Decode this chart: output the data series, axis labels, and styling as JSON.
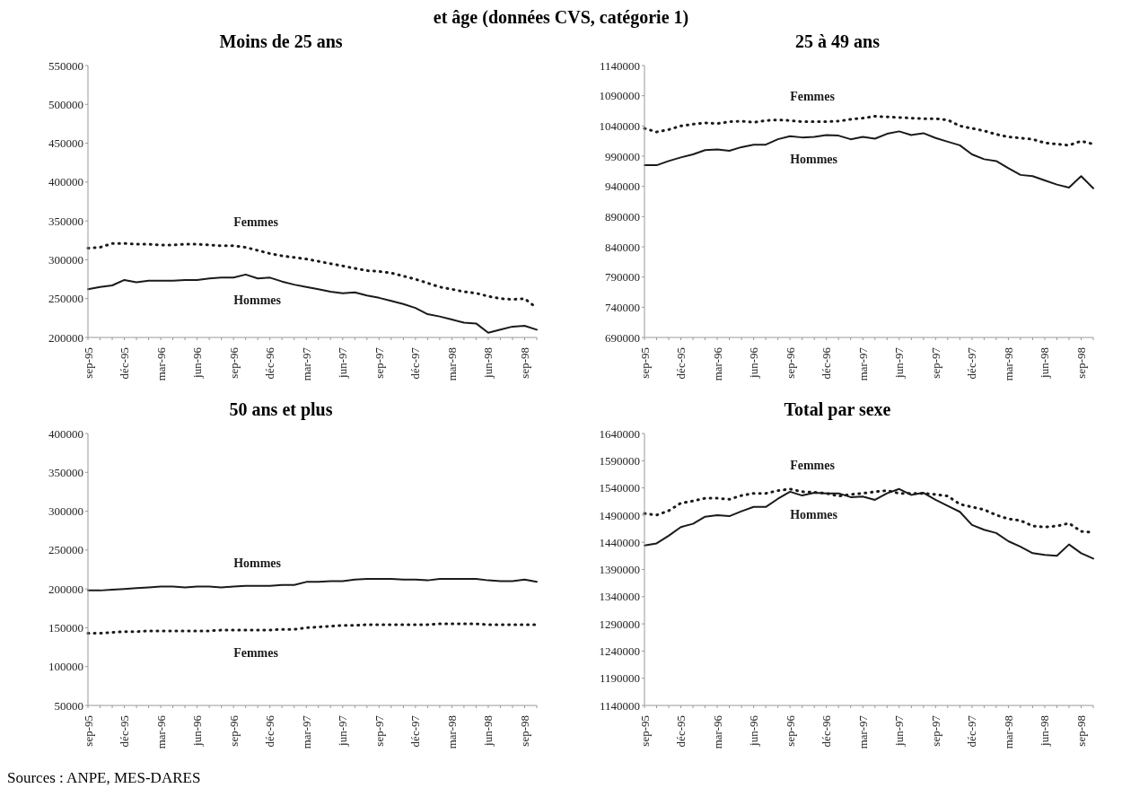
{
  "chart_data": [
    {
      "type": "line",
      "title": "Moins de 25 ans",
      "annotations": [
        "et âge (données CVS, catégorie 1)"
      ],
      "categories": [
        "sep-95",
        null,
        null,
        "déc-95",
        null,
        null,
        "mar-96",
        null,
        null,
        "jun-96",
        null,
        null,
        "sep-96",
        null,
        null,
        "déc-96",
        null,
        null,
        "mar-97",
        null,
        null,
        "jun-97",
        null,
        null,
        "sep-97",
        null,
        null,
        "déc-97",
        null,
        null,
        "mar-98",
        null,
        null,
        "jun-98",
        null,
        null,
        "sep-98",
        null
      ],
      "ylim": [
        200000,
        550000
      ],
      "yticks": [
        200000,
        250000,
        300000,
        350000,
        400000,
        450000,
        500000,
        550000
      ],
      "grid": false,
      "legend": false,
      "marker": "none",
      "series": [
        {
          "name": "Femmes",
          "color": "#1a1a1a",
          "line_style": "dotted",
          "values": [
            315000,
            316000,
            321000,
            321000,
            320000,
            320000,
            319000,
            319000,
            320000,
            320000,
            319000,
            318000,
            318000,
            316000,
            312000,
            308000,
            305000,
            303000,
            301000,
            298000,
            295000,
            292000,
            289000,
            286000,
            285000,
            283000,
            279000,
            275000,
            270000,
            265000,
            262000,
            259000,
            257000,
            253000,
            250000,
            249000,
            250000,
            238000
          ]
        },
        {
          "name": "Hommes",
          "color": "#1a1a1a",
          "line_style": "solid",
          "values": [
            262000,
            265000,
            267000,
            274000,
            271000,
            273000,
            273000,
            273000,
            274000,
            274000,
            276000,
            277000,
            277000,
            281000,
            276000,
            277000,
            272000,
            268000,
            265000,
            262000,
            259000,
            257000,
            258000,
            254000,
            251000,
            247000,
            243000,
            238000,
            230000,
            227000,
            223000,
            219000,
            218000,
            206000,
            210000,
            214000,
            215000,
            210000
          ]
        }
      ]
    },
    {
      "type": "line",
      "title": "25 à 49 ans",
      "categories": [
        "sep-95",
        null,
        null,
        "déc-95",
        null,
        null,
        "mar-96",
        null,
        null,
        "jun-96",
        null,
        null,
        "sep-96",
        null,
        null,
        "déc-96",
        null,
        null,
        "mar-97",
        null,
        null,
        "jun-97",
        null,
        null,
        "sep-97",
        null,
        null,
        "déc-97",
        null,
        null,
        "mar-98",
        null,
        null,
        "jun-98",
        null,
        null,
        "sep-98",
        null
      ],
      "ylim": [
        690000,
        1140000
      ],
      "yticks": [
        690000,
        740000,
        790000,
        840000,
        890000,
        940000,
        990000,
        1040000,
        1090000,
        1140000
      ],
      "grid": false,
      "legend": false,
      "marker": "none",
      "series": [
        {
          "name": "Femmes",
          "color": "#1a1a1a",
          "line_style": "dotted",
          "values": [
            1036000,
            1030000,
            1034000,
            1040000,
            1043000,
            1045000,
            1044000,
            1047000,
            1048000,
            1046000,
            1049000,
            1050000,
            1049000,
            1047000,
            1047000,
            1047000,
            1048000,
            1051000,
            1053000,
            1056000,
            1055000,
            1054000,
            1053000,
            1052000,
            1052000,
            1050000,
            1040000,
            1036000,
            1032000,
            1026000,
            1022000,
            1020000,
            1018000,
            1012000,
            1010000,
            1008000,
            1015000,
            1010000
          ]
        },
        {
          "name": "Hommes",
          "color": "#1a1a1a",
          "line_style": "solid",
          "values": [
            975000,
            975000,
            982000,
            988000,
            993000,
            1000000,
            1001000,
            999000,
            1005000,
            1009000,
            1009000,
            1018000,
            1023000,
            1021000,
            1022000,
            1025000,
            1024000,
            1018000,
            1022000,
            1019000,
            1027000,
            1031000,
            1025000,
            1028000,
            1020000,
            1014000,
            1008000,
            993000,
            985000,
            982000,
            970000,
            959000,
            957000,
            950000,
            943000,
            938000,
            957000,
            937000
          ]
        }
      ]
    },
    {
      "type": "line",
      "title": "50 ans et plus",
      "annotations": [
        "Sources : ANPE, MES-DARES"
      ],
      "categories": [
        "sep-95",
        null,
        null,
        "déc-95",
        null,
        null,
        "mar-96",
        null,
        null,
        "jun-96",
        null,
        null,
        "sep-96",
        null,
        null,
        "déc-96",
        null,
        null,
        "mar-97",
        null,
        null,
        "jun-97",
        null,
        null,
        "sep-97",
        null,
        null,
        "déc-97",
        null,
        null,
        "mar-98",
        null,
        null,
        "jun-98",
        null,
        null,
        "sep-98",
        null
      ],
      "ylim": [
        50000,
        400000
      ],
      "yticks": [
        50000,
        100000,
        150000,
        200000,
        250000,
        300000,
        350000,
        400000
      ],
      "grid": false,
      "legend": false,
      "marker": "none",
      "series": [
        {
          "name": "Hommes",
          "color": "#1a1a1a",
          "line_style": "solid",
          "values": [
            198000,
            198000,
            199000,
            200000,
            201000,
            202000,
            203000,
            203000,
            202000,
            203000,
            203000,
            202000,
            203000,
            204000,
            204000,
            204000,
            205000,
            205000,
            209000,
            209000,
            210000,
            210000,
            212000,
            213000,
            213000,
            213000,
            212000,
            212000,
            211000,
            213000,
            213000,
            213000,
            213000,
            211000,
            210000,
            210000,
            212000,
            209000
          ]
        },
        {
          "name": "Femmes",
          "color": "#1a1a1a",
          "line_style": "dotted",
          "values": [
            143000,
            143000,
            144000,
            145000,
            145000,
            146000,
            146000,
            146000,
            146000,
            146000,
            146000,
            147000,
            147000,
            147000,
            147000,
            147000,
            148000,
            148000,
            150000,
            151000,
            152000,
            153000,
            153000,
            154000,
            154000,
            154000,
            154000,
            154000,
            154000,
            155000,
            155000,
            155000,
            155000,
            154000,
            154000,
            154000,
            154000,
            154000
          ]
        }
      ]
    },
    {
      "type": "line",
      "title": "Total par sexe",
      "categories": [
        "sep-95",
        null,
        null,
        "déc-95",
        null,
        null,
        "mar-96",
        null,
        null,
        "jun-96",
        null,
        null,
        "sep-96",
        null,
        null,
        "déc-96",
        null,
        null,
        "mar-97",
        null,
        null,
        "jun-97",
        null,
        null,
        "sep-97",
        null,
        null,
        "déc-97",
        null,
        null,
        "mar-98",
        null,
        null,
        "jun-98",
        null,
        null,
        "sep-98",
        null
      ],
      "ylim": [
        1140000,
        1640000
      ],
      "yticks": [
        1140000,
        1190000,
        1240000,
        1290000,
        1340000,
        1390000,
        1440000,
        1490000,
        1540000,
        1590000,
        1640000
      ],
      "grid": false,
      "legend": false,
      "marker": "none",
      "series": [
        {
          "name": "Femmes",
          "color": "#1a1a1a",
          "line_style": "dotted",
          "values": [
            1493000,
            1490000,
            1498000,
            1512000,
            1516000,
            1521000,
            1521000,
            1519000,
            1526000,
            1530000,
            1530000,
            1535000,
            1538000,
            1533000,
            1532000,
            1530000,
            1525000,
            1528000,
            1530000,
            1533000,
            1535000,
            1530000,
            1530000,
            1530000,
            1528000,
            1525000,
            1510000,
            1505000,
            1500000,
            1490000,
            1483000,
            1480000,
            1470000,
            1468000,
            1470000,
            1475000,
            1460000,
            1458000
          ]
        },
        {
          "name": "Hommes",
          "color": "#1a1a1a",
          "line_style": "solid",
          "values": [
            1434000,
            1438000,
            1452000,
            1468000,
            1474000,
            1487000,
            1490000,
            1488000,
            1497000,
            1505000,
            1505000,
            1520000,
            1533000,
            1526000,
            1531000,
            1530000,
            1530000,
            1523000,
            1524000,
            1518000,
            1530000,
            1538000,
            1527000,
            1531000,
            1518000,
            1507000,
            1496000,
            1472000,
            1463000,
            1457000,
            1442000,
            1432000,
            1420000,
            1417000,
            1415000,
            1436000,
            1420000,
            1410000
          ]
        }
      ]
    }
  ]
}
